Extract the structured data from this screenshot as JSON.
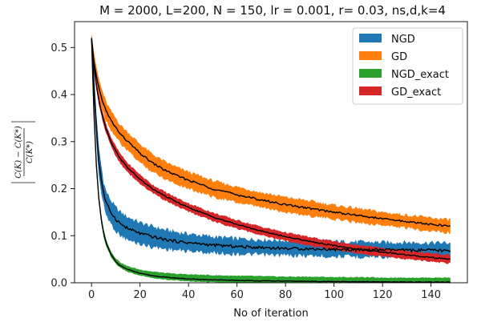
{
  "chart_data": {
    "type": "line",
    "title": "M = 2000, L=200, N = 150, lr = 0.001, r= 0.03, ns,d,k=4",
    "xlabel": "No of iteration",
    "ylabel": "|(C(K) − C(K*)) / C(K*)|",
    "xlim": [
      -7,
      155
    ],
    "ylim": [
      0,
      0.555
    ],
    "xticks": [
      0,
      20,
      40,
      60,
      80,
      100,
      120,
      140
    ],
    "yticks": [
      0.0,
      0.1,
      0.2,
      0.3,
      0.4,
      0.5
    ],
    "ytick_labels": [
      "0.0",
      "0.1",
      "0.2",
      "0.3",
      "0.4",
      "0.5"
    ],
    "grid": false,
    "legend_position": "top-right",
    "x": [
      0,
      1,
      2,
      3,
      4,
      5,
      6,
      8,
      10,
      12,
      15,
      20,
      25,
      30,
      35,
      40,
      50,
      60,
      70,
      80,
      90,
      100,
      110,
      120,
      130,
      140,
      148
    ],
    "series": [
      {
        "name": "NGD",
        "color": "#1f77b4",
        "mean": [
          0.52,
          0.42,
          0.33,
          0.26,
          0.22,
          0.19,
          0.17,
          0.15,
          0.135,
          0.125,
          0.115,
          0.105,
          0.098,
          0.092,
          0.088,
          0.085,
          0.08,
          0.077,
          0.075,
          0.073,
          0.072,
          0.071,
          0.07,
          0.07,
          0.069,
          0.069,
          0.068
        ],
        "lower": [
          0.51,
          0.39,
          0.3,
          0.23,
          0.19,
          0.165,
          0.145,
          0.125,
          0.11,
          0.1,
          0.09,
          0.082,
          0.076,
          0.072,
          0.069,
          0.067,
          0.063,
          0.061,
          0.059,
          0.058,
          0.057,
          0.056,
          0.055,
          0.055,
          0.054,
          0.054,
          0.054
        ],
        "upper": [
          0.53,
          0.45,
          0.36,
          0.29,
          0.25,
          0.215,
          0.195,
          0.175,
          0.16,
          0.15,
          0.14,
          0.128,
          0.12,
          0.113,
          0.108,
          0.104,
          0.098,
          0.094,
          0.092,
          0.09,
          0.089,
          0.088,
          0.087,
          0.086,
          0.086,
          0.085,
          0.085
        ]
      },
      {
        "name": "GD",
        "color": "#ff7f0e",
        "mean": [
          0.52,
          0.47,
          0.44,
          0.415,
          0.395,
          0.38,
          0.365,
          0.345,
          0.33,
          0.315,
          0.3,
          0.275,
          0.255,
          0.24,
          0.228,
          0.218,
          0.2,
          0.187,
          0.176,
          0.166,
          0.158,
          0.15,
          0.143,
          0.136,
          0.13,
          0.124,
          0.12
        ],
        "lower": [
          0.51,
          0.45,
          0.42,
          0.395,
          0.375,
          0.36,
          0.345,
          0.325,
          0.31,
          0.295,
          0.28,
          0.255,
          0.236,
          0.222,
          0.21,
          0.2,
          0.183,
          0.17,
          0.16,
          0.15,
          0.142,
          0.135,
          0.128,
          0.122,
          0.116,
          0.11,
          0.106
        ],
        "upper": [
          0.53,
          0.49,
          0.46,
          0.435,
          0.415,
          0.4,
          0.385,
          0.365,
          0.35,
          0.335,
          0.32,
          0.295,
          0.274,
          0.258,
          0.246,
          0.236,
          0.217,
          0.204,
          0.192,
          0.182,
          0.174,
          0.165,
          0.158,
          0.15,
          0.144,
          0.138,
          0.134
        ]
      },
      {
        "name": "NGD_exact",
        "color": "#2ca02c",
        "mean": [
          0.52,
          0.36,
          0.25,
          0.18,
          0.135,
          0.105,
          0.085,
          0.06,
          0.045,
          0.036,
          0.028,
          0.02,
          0.015,
          0.012,
          0.01,
          0.008,
          0.006,
          0.005,
          0.004,
          0.0035,
          0.003,
          0.0025,
          0.002,
          0.002,
          0.0015,
          0.0015,
          0.001
        ],
        "lower": [
          0.515,
          0.35,
          0.24,
          0.17,
          0.126,
          0.097,
          0.078,
          0.054,
          0.04,
          0.031,
          0.023,
          0.015,
          0.01,
          0.007,
          0.005,
          0.003,
          0.001,
          0.0,
          0.0,
          0.0,
          0.0,
          0.0,
          0.0,
          0.0,
          0.0,
          0.0,
          0.0
        ],
        "upper": [
          0.525,
          0.37,
          0.26,
          0.19,
          0.145,
          0.114,
          0.093,
          0.067,
          0.052,
          0.043,
          0.035,
          0.028,
          0.024,
          0.021,
          0.019,
          0.018,
          0.016,
          0.015,
          0.014,
          0.013,
          0.013,
          0.012,
          0.012,
          0.011,
          0.011,
          0.011,
          0.011
        ]
      },
      {
        "name": "GD_exact",
        "color": "#d62728",
        "mean": [
          0.52,
          0.46,
          0.42,
          0.39,
          0.365,
          0.345,
          0.328,
          0.3,
          0.28,
          0.263,
          0.244,
          0.22,
          0.2,
          0.185,
          0.172,
          0.16,
          0.14,
          0.124,
          0.11,
          0.098,
          0.088,
          0.079,
          0.071,
          0.065,
          0.059,
          0.054,
          0.05
        ],
        "lower": [
          0.515,
          0.45,
          0.41,
          0.38,
          0.355,
          0.335,
          0.318,
          0.29,
          0.27,
          0.253,
          0.234,
          0.21,
          0.191,
          0.176,
          0.163,
          0.151,
          0.131,
          0.115,
          0.101,
          0.089,
          0.079,
          0.07,
          0.062,
          0.056,
          0.05,
          0.045,
          0.041
        ],
        "upper": [
          0.525,
          0.47,
          0.43,
          0.4,
          0.375,
          0.355,
          0.338,
          0.31,
          0.29,
          0.273,
          0.254,
          0.23,
          0.209,
          0.194,
          0.181,
          0.169,
          0.149,
          0.133,
          0.119,
          0.107,
          0.097,
          0.088,
          0.08,
          0.074,
          0.068,
          0.063,
          0.059
        ]
      }
    ],
    "legend": [
      "NGD",
      "GD",
      "NGD_exact",
      "GD_exact"
    ]
  }
}
